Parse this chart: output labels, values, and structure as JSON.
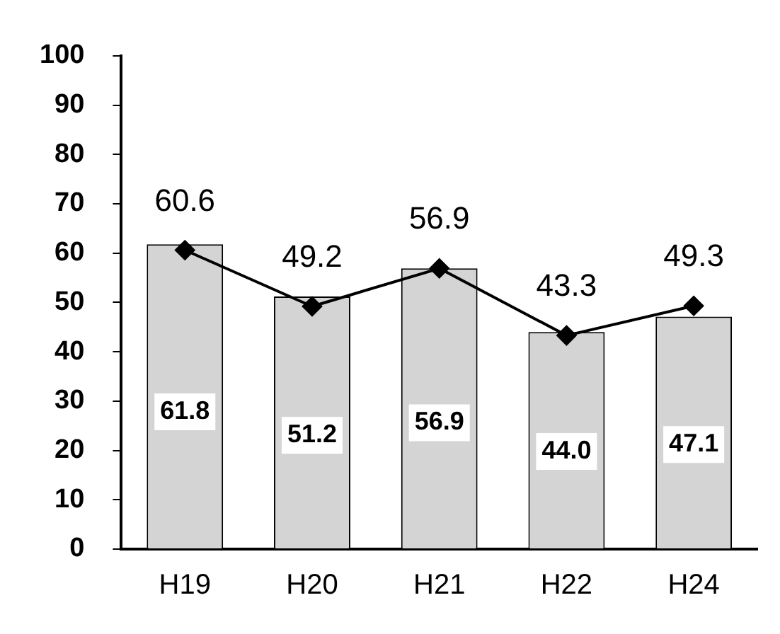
{
  "chart_data": {
    "type": "bar",
    "categories": [
      "H19",
      "H20",
      "H21",
      "H22",
      "H24"
    ],
    "series": [
      {
        "color": "#d4d4d4",
        "values": [
          61.8,
          51.2,
          56.9,
          44.0,
          47.1
        ],
        "value_labels": [
          "61.8",
          "51.2",
          "56.9",
          "44.0",
          "47.1"
        ]
      },
      {
        "type": "line",
        "color": "#000000",
        "values": [
          60.6,
          49.2,
          56.9,
          43.3,
          49.3
        ],
        "value_labels": [
          "60.6",
          "49.2",
          "56.9",
          "43.3",
          "49.3"
        ],
        "marker": "diamond"
      }
    ],
    "ylim": [
      0,
      100
    ],
    "yticks": [
      0,
      10,
      20,
      30,
      40,
      50,
      60,
      70,
      80,
      90,
      100
    ],
    "grid": false,
    "legend": false
  }
}
